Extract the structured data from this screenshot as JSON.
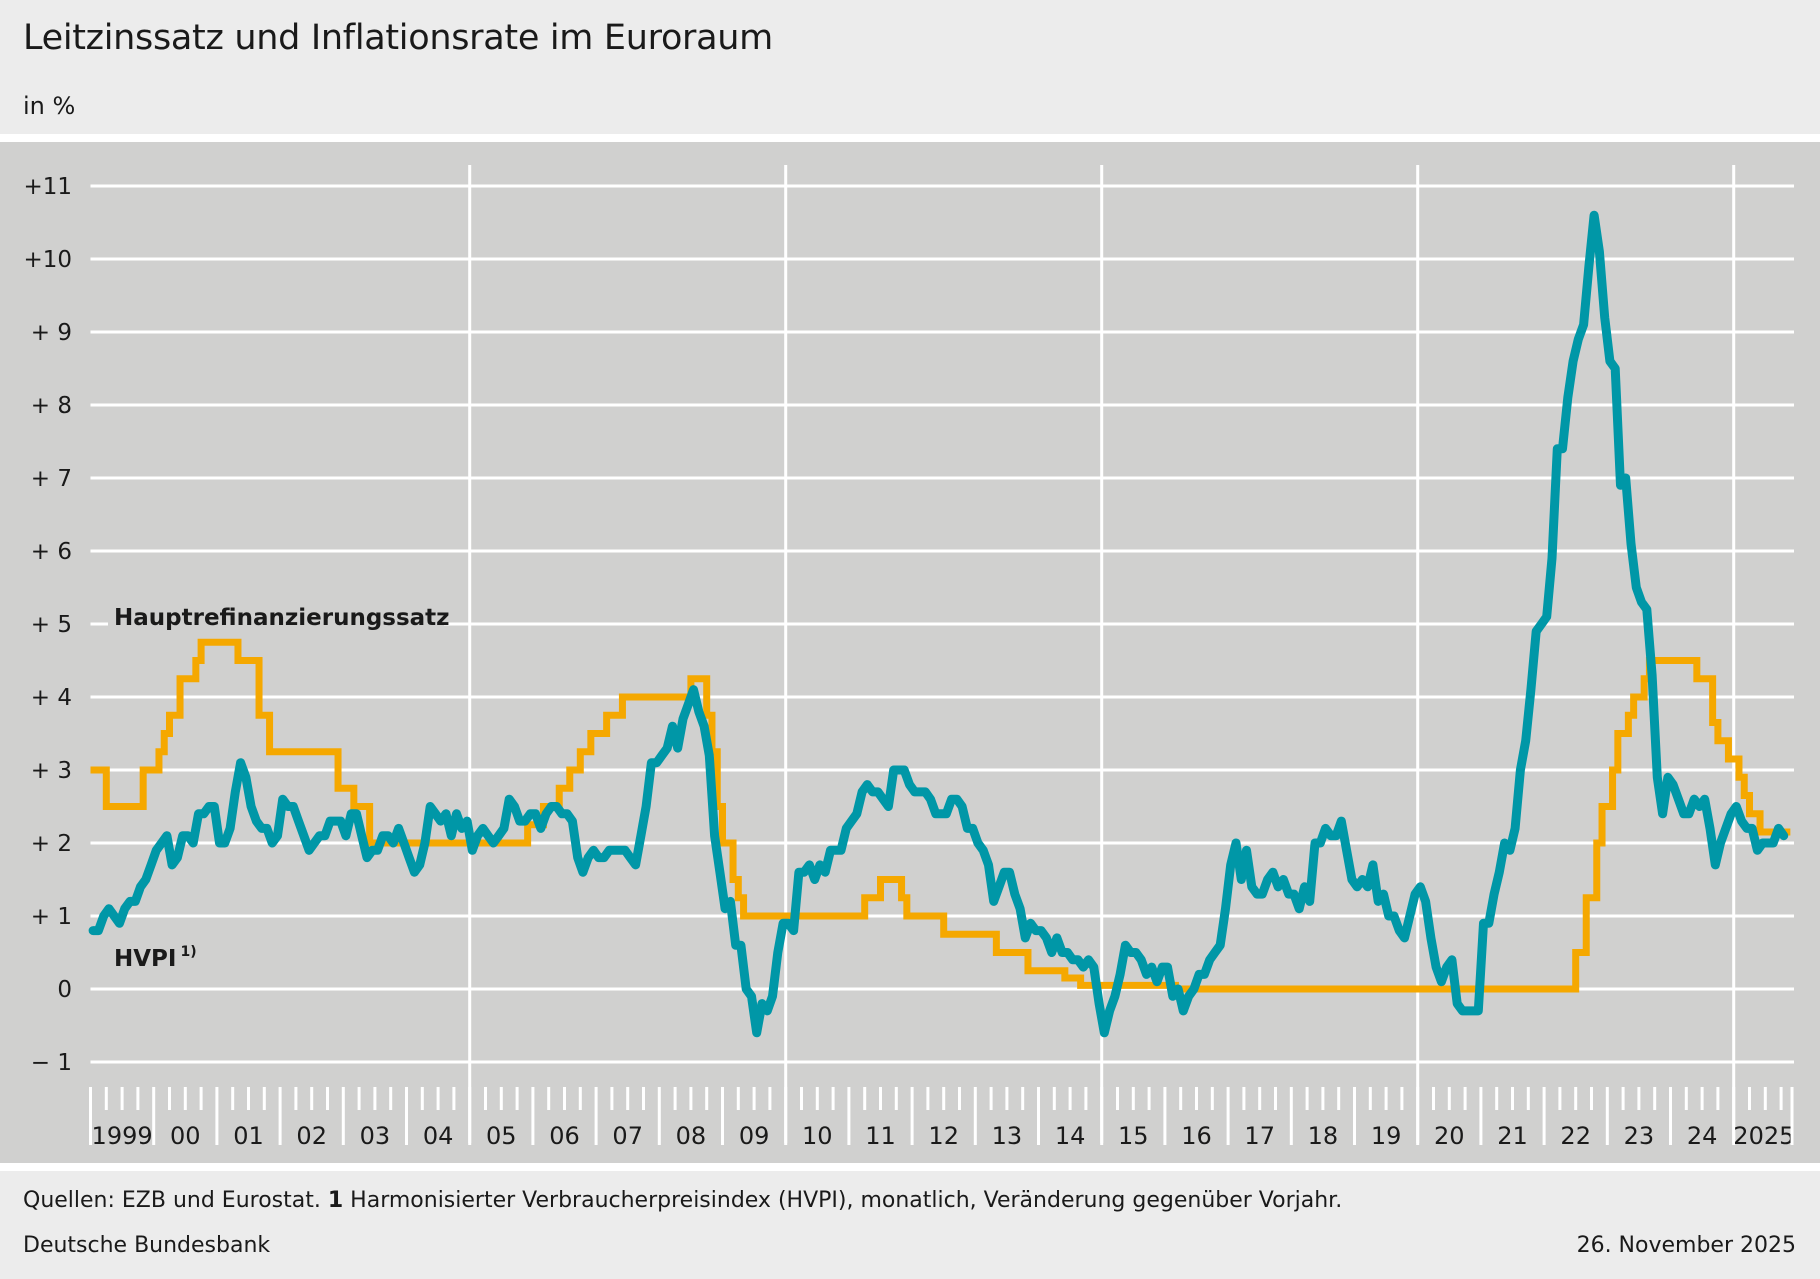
{
  "title": "Leitzinssatz und Inflationsrate im Euroraum",
  "subtitle": "in %",
  "footer": {
    "source_prefix": "Quellen: EZB und Eurostat.",
    "note_number": "1",
    "note_text": "Harmonisierter Verbraucherpreisindex (HVPI), monatlich, Veränderung gegenüber Vorjahr.",
    "publisher": "Deutsche Bundesbank",
    "date": "26. November 2025"
  },
  "chart_data": {
    "type": "line",
    "title": "Leitzinssatz und Inflationsrate im Euroraum",
    "ylabel": "in %",
    "ylim": [
      -1,
      11
    ],
    "xlim": [
      "1999-01",
      "2025-11"
    ],
    "grid": true,
    "y_ticks": [
      -1,
      0,
      1,
      2,
      3,
      4,
      5,
      6,
      7,
      8,
      9,
      10,
      11
    ],
    "y_tick_labels": [
      "−  1",
      "0",
      "+  1",
      "+  2",
      "+  3",
      "+  4",
      "+  5",
      "+  6",
      "+  7",
      "+  8",
      "+  9",
      "+10",
      "+11"
    ],
    "x_tick_labels": [
      "1999",
      "00",
      "01",
      "02",
      "03",
      "04",
      "05",
      "06",
      "07",
      "08",
      "09",
      "10",
      "11",
      "12",
      "13",
      "14",
      "15",
      "16",
      "17",
      "18",
      "19",
      "20",
      "21",
      "22",
      "23",
      "24",
      "2025"
    ],
    "colors": {
      "rate": "#f5a800",
      "hicp": "#0097a7",
      "grid": "#ffffff",
      "background": "#d0d0cf"
    },
    "series": [
      {
        "name": "Hauptrefinanzierungssatz",
        "kind": "step",
        "changes": [
          [
            "1999-01",
            3.0
          ],
          [
            "1999-04",
            2.5
          ],
          [
            "1999-11",
            3.0
          ],
          [
            "2000-02",
            3.25
          ],
          [
            "2000-03",
            3.5
          ],
          [
            "2000-04",
            3.75
          ],
          [
            "2000-06",
            4.25
          ],
          [
            "2000-09",
            4.5
          ],
          [
            "2000-10",
            4.75
          ],
          [
            "2001-05",
            4.5
          ],
          [
            "2001-09",
            3.75
          ],
          [
            "2001-11",
            3.25
          ],
          [
            "2002-12",
            2.75
          ],
          [
            "2003-03",
            2.5
          ],
          [
            "2003-06",
            2.0
          ],
          [
            "2005-12",
            2.25
          ],
          [
            "2006-03",
            2.5
          ],
          [
            "2006-06",
            2.75
          ],
          [
            "2006-08",
            3.0
          ],
          [
            "2006-10",
            3.25
          ],
          [
            "2006-12",
            3.5
          ],
          [
            "2007-03",
            3.75
          ],
          [
            "2007-06",
            4.0
          ],
          [
            "2008-07",
            4.25
          ],
          [
            "2008-10",
            3.75
          ],
          [
            "2008-11",
            3.25
          ],
          [
            "2008-12",
            2.5
          ],
          [
            "2009-01",
            2.0
          ],
          [
            "2009-03",
            1.5
          ],
          [
            "2009-04",
            1.25
          ],
          [
            "2009-05",
            1.0
          ],
          [
            "2011-04",
            1.25
          ],
          [
            "2011-07",
            1.5
          ],
          [
            "2011-11",
            1.25
          ],
          [
            "2011-12",
            1.0
          ],
          [
            "2012-07",
            0.75
          ],
          [
            "2013-05",
            0.5
          ],
          [
            "2013-11",
            0.25
          ],
          [
            "2014-06",
            0.15
          ],
          [
            "2014-09",
            0.05
          ],
          [
            "2016-03",
            0.0
          ],
          [
            "2022-07",
            0.5
          ],
          [
            "2022-09",
            1.25
          ],
          [
            "2022-11",
            2.0
          ],
          [
            "2022-12",
            2.5
          ],
          [
            "2023-02",
            3.0
          ],
          [
            "2023-03",
            3.5
          ],
          [
            "2023-05",
            3.75
          ],
          [
            "2023-06",
            4.0
          ],
          [
            "2023-08",
            4.25
          ],
          [
            "2023-09",
            4.5
          ],
          [
            "2024-06",
            4.25
          ],
          [
            "2024-09",
            3.65
          ],
          [
            "2024-10",
            3.4
          ],
          [
            "2024-12",
            3.15
          ],
          [
            "2025-02",
            2.9
          ],
          [
            "2025-03",
            2.65
          ],
          [
            "2025-04",
            2.4
          ],
          [
            "2025-06",
            2.15
          ],
          [
            "2025-11",
            2.15
          ]
        ]
      },
      {
        "name": "HVPI",
        "name_superscript": "1)",
        "kind": "monthly",
        "start": "1999-01",
        "values": [
          0.8,
          0.8,
          1.0,
          1.1,
          1.0,
          0.9,
          1.1,
          1.2,
          1.2,
          1.4,
          1.5,
          1.7,
          1.9,
          2.0,
          2.1,
          1.7,
          1.8,
          2.1,
          2.1,
          2.0,
          2.4,
          2.4,
          2.5,
          2.5,
          2.0,
          2.0,
          2.2,
          2.7,
          3.1,
          2.9,
          2.5,
          2.3,
          2.2,
          2.2,
          2.0,
          2.1,
          2.6,
          2.5,
          2.5,
          2.3,
          2.1,
          1.9,
          2.0,
          2.1,
          2.1,
          2.3,
          2.3,
          2.3,
          2.1,
          2.4,
          2.4,
          2.1,
          1.8,
          1.9,
          1.9,
          2.1,
          2.1,
          2.0,
          2.2,
          2.0,
          1.8,
          1.6,
          1.7,
          2.0,
          2.5,
          2.4,
          2.3,
          2.4,
          2.1,
          2.4,
          2.2,
          2.3,
          1.9,
          2.1,
          2.2,
          2.1,
          2.0,
          2.1,
          2.2,
          2.6,
          2.5,
          2.3,
          2.3,
          2.4,
          2.4,
          2.2,
          2.4,
          2.5,
          2.5,
          2.4,
          2.4,
          2.3,
          1.8,
          1.6,
          1.8,
          1.9,
          1.8,
          1.8,
          1.9,
          1.9,
          1.9,
          1.9,
          1.8,
          1.7,
          2.1,
          2.5,
          3.1,
          3.1,
          3.2,
          3.3,
          3.6,
          3.3,
          3.7,
          3.9,
          4.1,
          3.8,
          3.6,
          3.2,
          2.1,
          1.6,
          1.1,
          1.2,
          0.6,
          0.6,
          0.0,
          -0.1,
          -0.6,
          -0.2,
          -0.3,
          -0.1,
          0.5,
          0.9,
          0.9,
          0.8,
          1.6,
          1.6,
          1.7,
          1.5,
          1.7,
          1.6,
          1.9,
          1.9,
          1.9,
          2.2,
          2.3,
          2.4,
          2.7,
          2.8,
          2.7,
          2.7,
          2.6,
          2.5,
          3.0,
          3.0,
          3.0,
          2.8,
          2.7,
          2.7,
          2.7,
          2.6,
          2.4,
          2.4,
          2.4,
          2.6,
          2.6,
          2.5,
          2.2,
          2.2,
          2.0,
          1.9,
          1.7,
          1.2,
          1.4,
          1.6,
          1.6,
          1.3,
          1.1,
          0.7,
          0.9,
          0.8,
          0.8,
          0.7,
          0.5,
          0.7,
          0.5,
          0.5,
          0.4,
          0.4,
          0.3,
          0.4,
          0.3,
          -0.2,
          -0.6,
          -0.3,
          -0.1,
          0.2,
          0.6,
          0.5,
          0.5,
          0.4,
          0.2,
          0.3,
          0.1,
          0.3,
          0.3,
          -0.1,
          0.0,
          -0.3,
          -0.1,
          0.0,
          0.2,
          0.2,
          0.4,
          0.5,
          0.6,
          1.1,
          1.7,
          2.0,
          1.5,
          1.9,
          1.4,
          1.3,
          1.3,
          1.5,
          1.6,
          1.4,
          1.5,
          1.3,
          1.3,
          1.1,
          1.4,
          1.2,
          2.0,
          2.0,
          2.2,
          2.1,
          2.1,
          2.3,
          1.9,
          1.5,
          1.4,
          1.5,
          1.4,
          1.7,
          1.2,
          1.3,
          1.0,
          1.0,
          0.8,
          0.7,
          1.0,
          1.3,
          1.4,
          1.2,
          0.7,
          0.3,
          0.1,
          0.3,
          0.4,
          -0.2,
          -0.3,
          -0.3,
          -0.3,
          -0.3,
          0.9,
          0.9,
          1.3,
          1.6,
          2.0,
          1.9,
          2.2,
          3.0,
          3.4,
          4.1,
          4.9,
          5.0,
          5.1,
          5.9,
          7.4,
          7.4,
          8.1,
          8.6,
          8.9,
          9.1,
          9.9,
          10.6,
          10.1,
          9.2,
          8.6,
          8.5,
          6.9,
          7.0,
          6.1,
          5.5,
          5.3,
          5.2,
          4.3,
          2.9,
          2.4,
          2.9,
          2.8,
          2.6,
          2.4,
          2.4,
          2.6,
          2.5,
          2.6,
          2.2,
          1.7,
          2.0,
          2.2,
          2.4,
          2.5,
          2.3,
          2.2,
          2.2,
          1.9,
          2.0,
          2.0,
          2.0,
          2.2,
          2.1
        ]
      }
    ]
  }
}
